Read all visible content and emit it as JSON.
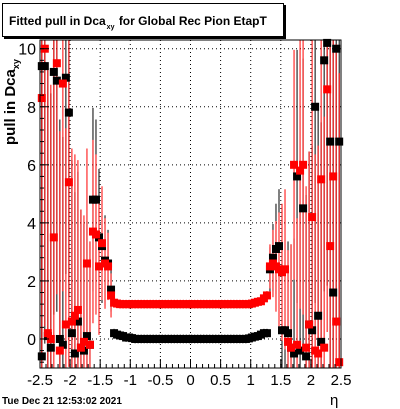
{
  "chart_data": {
    "type": "scatter",
    "title_main": "Fitted pull in Dca",
    "title_sub": "xy",
    "title_tail": "for Global Rec Pion EtapT",
    "ylabel_main": "pull in Dca",
    "ylabel_sub": "xy",
    "xlabel": "η",
    "xlim": [
      -2.5,
      2.5
    ],
    "ylim": [
      -1,
      10.3
    ],
    "x_ticks": [
      "-2.5",
      "-2",
      "-1.5",
      "-1",
      "-0.5",
      "0",
      "0.5",
      "1",
      "1.5",
      "2",
      "2.5"
    ],
    "y_ticks": [
      "0",
      "2",
      "4",
      "6",
      "8",
      "10"
    ],
    "grid": true,
    "timestamp": "Tue Dec 21 12:53:02 2021",
    "series": [
      {
        "color": "#000000",
        "points": [
          [
            -2.47,
            -0.6
          ],
          [
            -2.47,
            9.4
          ],
          [
            -2.42,
            9.4
          ],
          [
            -2.37,
            0.1
          ],
          [
            -2.32,
            -0.3
          ],
          [
            -2.27,
            9.2
          ],
          [
            -2.22,
            8.9
          ],
          [
            -2.17,
            0.0
          ],
          [
            -2.12,
            -0.2
          ],
          [
            -2.07,
            9.0
          ],
          [
            -2.02,
            7.8
          ],
          [
            -1.97,
            0.2
          ],
          [
            -1.92,
            -0.5
          ],
          [
            -1.87,
            0.6
          ],
          [
            -1.82,
            -0.3
          ],
          [
            -1.77,
            -0.4
          ],
          [
            -1.72,
            0.1
          ],
          [
            -1.67,
            -0.2
          ],
          [
            -1.62,
            4.8
          ],
          [
            -1.57,
            4.8
          ],
          [
            -1.52,
            3.5
          ],
          [
            -1.47,
            3.2
          ],
          [
            -1.42,
            2.7
          ],
          [
            -1.37,
            2.6
          ],
          [
            -1.32,
            1.7
          ],
          [
            -1.27,
            0.2
          ],
          [
            -1.22,
            0.15
          ],
          [
            -1.17,
            0.12
          ],
          [
            -1.12,
            0.1
          ],
          [
            -1.07,
            0.05
          ],
          [
            -1.02,
            0.05
          ],
          [
            -0.97,
            0.03
          ],
          [
            -0.92,
            0.0
          ],
          [
            -0.87,
            0.0
          ],
          [
            -0.82,
            0.0
          ],
          [
            -0.77,
            0.0
          ],
          [
            -0.72,
            0.0
          ],
          [
            -0.67,
            0.0
          ],
          [
            -0.62,
            0.0
          ],
          [
            -0.57,
            0.0
          ],
          [
            -0.52,
            0.0
          ],
          [
            -0.47,
            0.0
          ],
          [
            -0.42,
            0.0
          ],
          [
            -0.37,
            0.0
          ],
          [
            -0.32,
            0.0
          ],
          [
            -0.27,
            0.0
          ],
          [
            -0.22,
            0.0
          ],
          [
            -0.17,
            0.0
          ],
          [
            -0.12,
            0.0
          ],
          [
            -0.07,
            0.0
          ],
          [
            -0.02,
            0.0
          ],
          [
            0.02,
            0.0
          ],
          [
            0.07,
            0.0
          ],
          [
            0.12,
            0.0
          ],
          [
            0.17,
            0.0
          ],
          [
            0.22,
            0.0
          ],
          [
            0.27,
            0.0
          ],
          [
            0.32,
            0.0
          ],
          [
            0.37,
            0.0
          ],
          [
            0.42,
            0.0
          ],
          [
            0.47,
            0.0
          ],
          [
            0.52,
            0.0
          ],
          [
            0.57,
            0.0
          ],
          [
            0.62,
            0.0
          ],
          [
            0.67,
            0.0
          ],
          [
            0.72,
            0.0
          ],
          [
            0.77,
            0.0
          ],
          [
            0.82,
            0.0
          ],
          [
            0.87,
            0.0
          ],
          [
            0.92,
            0.0
          ],
          [
            0.97,
            0.02
          ],
          [
            1.02,
            0.05
          ],
          [
            1.07,
            0.08
          ],
          [
            1.12,
            0.1
          ],
          [
            1.17,
            0.15
          ],
          [
            1.22,
            0.2
          ],
          [
            1.27,
            0.2
          ],
          [
            1.32,
            2.4
          ],
          [
            1.37,
            2.8
          ],
          [
            1.42,
            3.1
          ],
          [
            1.47,
            3.2
          ],
          [
            1.52,
            0.3
          ],
          [
            1.57,
            0.3
          ],
          [
            1.62,
            0.2
          ],
          [
            1.67,
            -0.3
          ],
          [
            1.72,
            -0.5
          ],
          [
            1.77,
            5.6
          ],
          [
            1.82,
            -0.4
          ],
          [
            1.87,
            4.5
          ],
          [
            1.92,
            -0.6
          ],
          [
            1.97,
            0.5
          ],
          [
            2.02,
            0.3
          ],
          [
            2.07,
            8.0
          ],
          [
            2.12,
            0.8
          ],
          [
            2.17,
            -0.1
          ],
          [
            2.22,
            9.6
          ],
          [
            2.27,
            10.2
          ],
          [
            2.32,
            6.8
          ],
          [
            2.37,
            1.6
          ],
          [
            2.42,
            10.0
          ],
          [
            2.47,
            6.8
          ]
        ]
      },
      {
        "color": "#ff0000",
        "points": [
          [
            -2.47,
            8.3
          ],
          [
            -2.42,
            10.0
          ],
          [
            -2.37,
            0.2
          ],
          [
            -2.32,
            0.0
          ],
          [
            -2.27,
            3.5
          ],
          [
            -2.22,
            9.5
          ],
          [
            -2.17,
            -0.4
          ],
          [
            -2.12,
            8.8
          ],
          [
            -2.07,
            0.5
          ],
          [
            -2.02,
            5.4
          ],
          [
            -1.97,
            0.6
          ],
          [
            -1.92,
            0.8
          ],
          [
            -1.87,
            1.0
          ],
          [
            -1.82,
            -0.3
          ],
          [
            -1.77,
            -0.1
          ],
          [
            -1.72,
            2.6
          ],
          [
            -1.67,
            -0.2
          ],
          [
            -1.62,
            3.7
          ],
          [
            -1.57,
            3.6
          ],
          [
            -1.52,
            2.5
          ],
          [
            -1.47,
            3.3
          ],
          [
            -1.42,
            2.6
          ],
          [
            -1.37,
            2.5
          ],
          [
            -1.32,
            1.5
          ],
          [
            -1.27,
            1.25
          ],
          [
            -1.22,
            1.22
          ],
          [
            -1.17,
            1.2
          ],
          [
            -1.12,
            1.2
          ],
          [
            -1.07,
            1.2
          ],
          [
            -1.02,
            1.2
          ],
          [
            -0.97,
            1.2
          ],
          [
            -0.92,
            1.2
          ],
          [
            -0.87,
            1.2
          ],
          [
            -0.82,
            1.2
          ],
          [
            -0.77,
            1.2
          ],
          [
            -0.72,
            1.2
          ],
          [
            -0.67,
            1.2
          ],
          [
            -0.62,
            1.2
          ],
          [
            -0.57,
            1.2
          ],
          [
            -0.52,
            1.2
          ],
          [
            -0.47,
            1.2
          ],
          [
            -0.42,
            1.2
          ],
          [
            -0.37,
            1.2
          ],
          [
            -0.32,
            1.2
          ],
          [
            -0.27,
            1.2
          ],
          [
            -0.22,
            1.2
          ],
          [
            -0.17,
            1.2
          ],
          [
            -0.12,
            1.2
          ],
          [
            -0.07,
            1.2
          ],
          [
            -0.02,
            1.2
          ],
          [
            0.02,
            1.2
          ],
          [
            0.07,
            1.2
          ],
          [
            0.12,
            1.2
          ],
          [
            0.17,
            1.2
          ],
          [
            0.22,
            1.2
          ],
          [
            0.27,
            1.2
          ],
          [
            0.32,
            1.2
          ],
          [
            0.37,
            1.2
          ],
          [
            0.42,
            1.2
          ],
          [
            0.47,
            1.2
          ],
          [
            0.52,
            1.2
          ],
          [
            0.57,
            1.2
          ],
          [
            0.62,
            1.2
          ],
          [
            0.67,
            1.2
          ],
          [
            0.72,
            1.2
          ],
          [
            0.77,
            1.2
          ],
          [
            0.82,
            1.2
          ],
          [
            0.87,
            1.2
          ],
          [
            0.92,
            1.2
          ],
          [
            0.97,
            1.2
          ],
          [
            1.02,
            1.22
          ],
          [
            1.07,
            1.25
          ],
          [
            1.12,
            1.28
          ],
          [
            1.17,
            1.3
          ],
          [
            1.22,
            1.4
          ],
          [
            1.27,
            1.5
          ],
          [
            1.32,
            2.5
          ],
          [
            1.37,
            2.6
          ],
          [
            1.42,
            2.5
          ],
          [
            1.47,
            2.4
          ],
          [
            1.52,
            2.3
          ],
          [
            1.57,
            2.4
          ],
          [
            1.62,
            -0.1
          ],
          [
            1.67,
            -0.3
          ],
          [
            1.72,
            6.0
          ],
          [
            1.77,
            -0.2
          ],
          [
            1.82,
            5.8
          ],
          [
            1.87,
            6.0
          ],
          [
            1.92,
            -0.3
          ],
          [
            1.97,
            0.5
          ],
          [
            2.02,
            4.2
          ],
          [
            2.07,
            -0.4
          ],
          [
            2.12,
            -0.5
          ],
          [
            2.17,
            5.5
          ],
          [
            2.22,
            -0.3
          ],
          [
            2.27,
            8.6
          ],
          [
            2.32,
            3.2
          ],
          [
            2.37,
            5.6
          ],
          [
            2.42,
            0.6
          ],
          [
            2.47,
            -0.8
          ]
        ]
      }
    ]
  }
}
